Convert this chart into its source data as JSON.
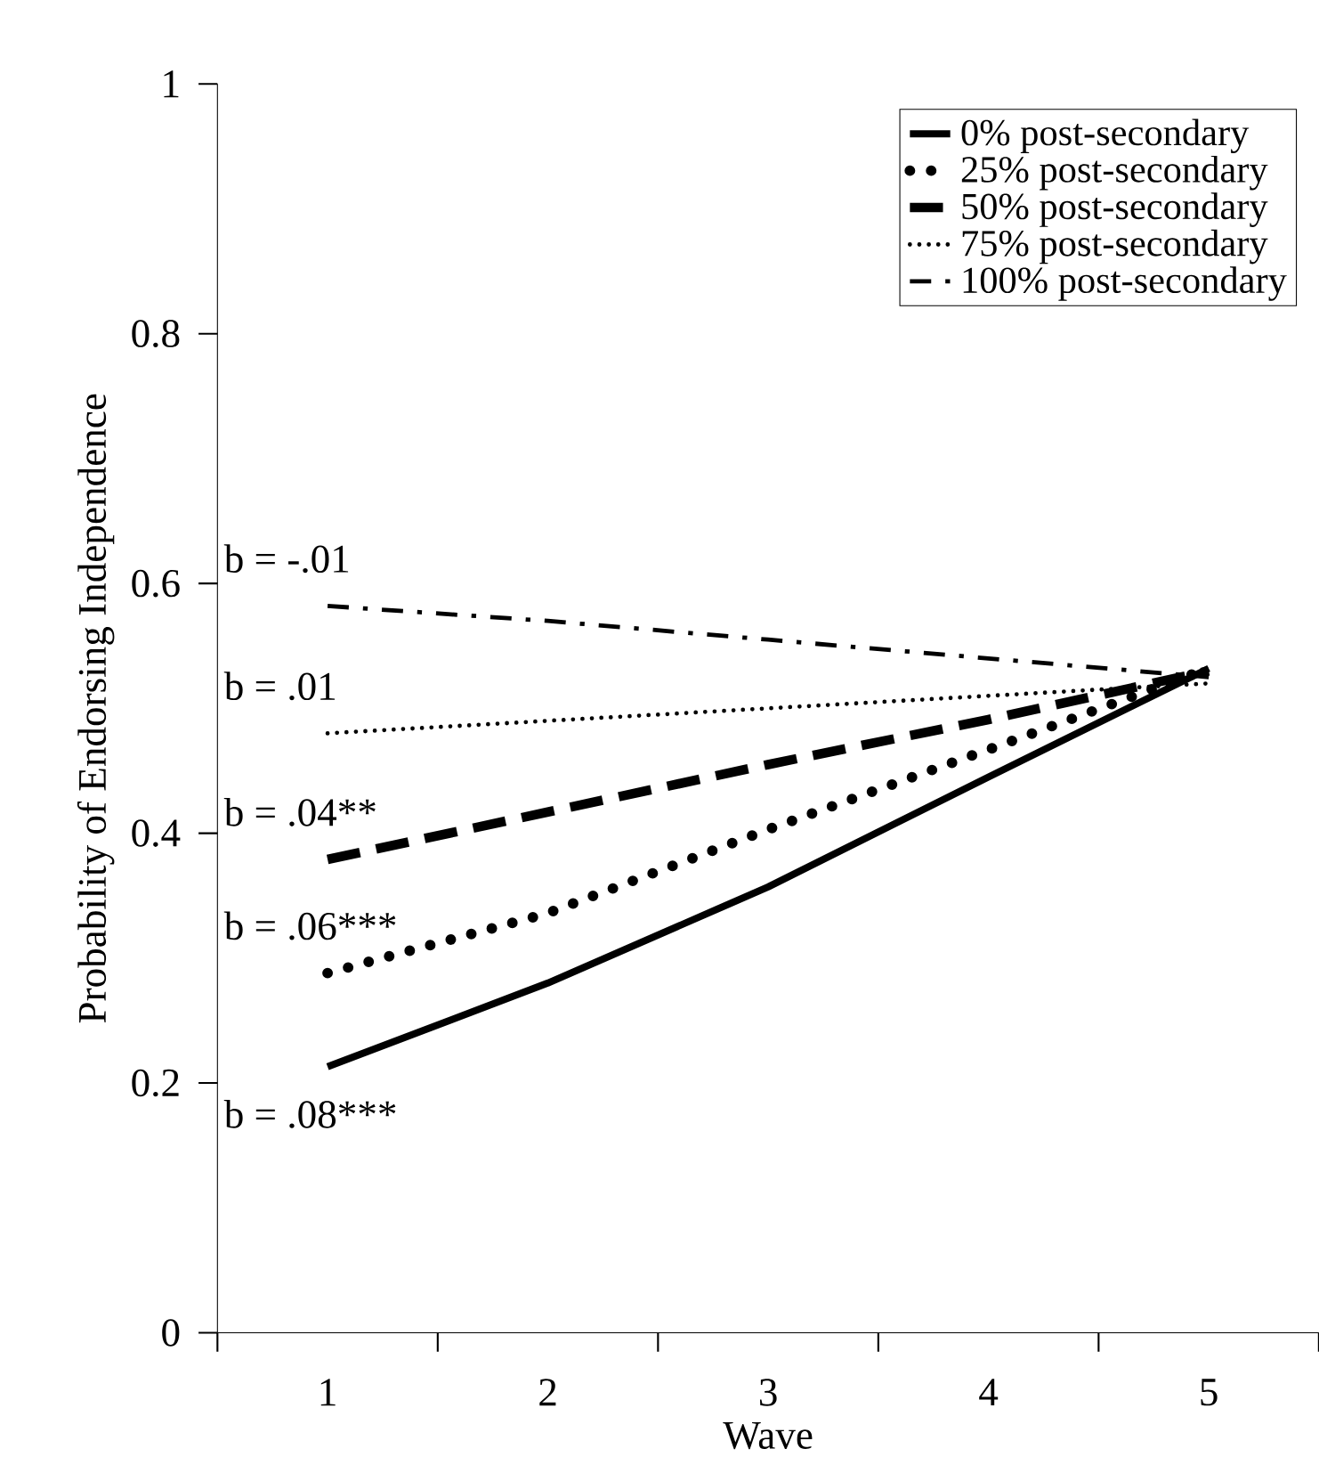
{
  "chart_data": {
    "type": "line",
    "xlabel": "Wave",
    "ylabel": "Probability of Endorsing Independence",
    "categories": [
      "1",
      "2",
      "3",
      "4",
      "5"
    ],
    "ylim": [
      0,
      1
    ],
    "yticks": [
      0,
      0.2,
      0.4,
      0.6,
      0.8,
      1
    ],
    "legend": "top right",
    "grid": false,
    "marker": "none",
    "series": [
      {
        "name": "0% post-secondary",
        "color": "#000000",
        "line_style": "solid",
        "values": [
          0.213,
          0.28,
          0.357,
          0.445,
          0.532
        ]
      },
      {
        "name": "25% post-secondary",
        "color": "#000000",
        "line_style": "dotted",
        "values": [
          0.288,
          0.336,
          0.403,
          0.467,
          0.532
        ]
      },
      {
        "name": "50% post-secondary",
        "color": "#000000",
        "line_style": "dashed",
        "values": [
          0.379,
          0.417,
          0.455,
          0.491,
          0.53
        ]
      },
      {
        "name": "75% post-secondary",
        "color": "#000000",
        "line_style": "dotted",
        "values": [
          0.48,
          0.49,
          0.5,
          0.51,
          0.52
        ]
      },
      {
        "name": "100% post-secondary",
        "color": "#000000",
        "line_style": "dashdot",
        "values": [
          0.582,
          0.57,
          0.555,
          0.54,
          0.525
        ]
      }
    ],
    "annotations": [
      "b = -.01",
      "b = .01",
      "b = .04**",
      "b = .06***",
      "b = .08***"
    ]
  }
}
